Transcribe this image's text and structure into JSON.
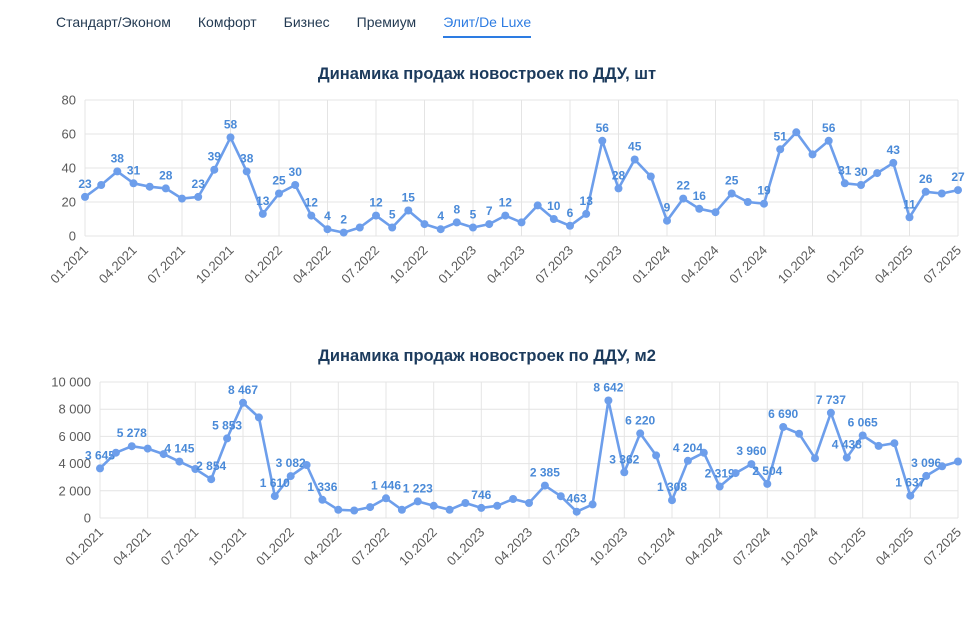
{
  "tabs": {
    "items": [
      {
        "label": "Стандарт/Эконом",
        "active": false
      },
      {
        "label": "Комфорт",
        "active": false
      },
      {
        "label": "Бизнес",
        "active": false
      },
      {
        "label": "Премиум",
        "active": false
      },
      {
        "label": "Элит/De Luxe",
        "active": true
      }
    ]
  },
  "colors": {
    "line": "#6d9eeb",
    "point_label": "#4a8ad8",
    "title": "#1b3a5c",
    "tab": "#243b53",
    "tab_active": "#2d7ce2",
    "grid": "#e4e4e4",
    "tick": "#5a5a5a"
  },
  "chart_data": [
    {
      "type": "line",
      "title": "Динамика продаж новостроек по ДДУ, шт",
      "xlabel": "",
      "ylabel": "",
      "legend": "none",
      "grid": true,
      "ylim": [
        0,
        80
      ],
      "yticks": [
        0,
        20,
        40,
        60,
        80
      ],
      "ytick_labels": [
        "0",
        "20",
        "40",
        "60",
        "80"
      ],
      "xtick_every": 3,
      "x": [
        "01.2021",
        "02.2021",
        "03.2021",
        "04.2021",
        "05.2021",
        "06.2021",
        "07.2021",
        "08.2021",
        "09.2021",
        "10.2021",
        "11.2021",
        "12.2021",
        "01.2022",
        "02.2022",
        "03.2022",
        "04.2022",
        "05.2022",
        "06.2022",
        "07.2022",
        "08.2022",
        "09.2022",
        "10.2022",
        "11.2022",
        "12.2022",
        "01.2023",
        "02.2023",
        "03.2023",
        "04.2023",
        "05.2023",
        "06.2023",
        "07.2023",
        "08.2023",
        "09.2023",
        "10.2023",
        "11.2023",
        "12.2023",
        "01.2024",
        "02.2024",
        "03.2024",
        "04.2024",
        "05.2024",
        "06.2024",
        "07.2024",
        "08.2024",
        "09.2024",
        "10.2024",
        "11.2024",
        "12.2024",
        "01.2025",
        "02.2025",
        "03.2025",
        "04.2025",
        "05.2025",
        "06.2025",
        "07.2025"
      ],
      "values": [
        23,
        30,
        38,
        31,
        29,
        28,
        22,
        23,
        39,
        58,
        38,
        13,
        25,
        30,
        12,
        4,
        2,
        5,
        12,
        5,
        15,
        7,
        4,
        8,
        5,
        7,
        12,
        8,
        18,
        10,
        6,
        13,
        56,
        28,
        45,
        35,
        9,
        22,
        16,
        14,
        25,
        20,
        19,
        51,
        61,
        48,
        56,
        31,
        30,
        37,
        43,
        11,
        26,
        25,
        27
      ],
      "point_labels": [
        "23",
        null,
        "38",
        "31",
        null,
        "28",
        null,
        "23",
        "39",
        "58",
        "38",
        "13",
        "25",
        "30",
        "12",
        "4",
        "2",
        null,
        "12",
        "5",
        "15",
        null,
        "4",
        "8",
        "5",
        "7",
        "12",
        null,
        null,
        "10",
        "6",
        "13",
        "56",
        "28",
        "45",
        null,
        "9",
        "22",
        "16",
        null,
        "25",
        null,
        "19",
        "51",
        null,
        null,
        "56",
        "31",
        "30",
        null,
        "43",
        "11",
        "26",
        null,
        "27"
      ]
    },
    {
      "type": "line",
      "title": "Динамика продаж новостроек по ДДУ, м2",
      "xlabel": "",
      "ylabel": "",
      "legend": "none",
      "grid": true,
      "ylim": [
        0,
        10000
      ],
      "yticks": [
        0,
        2000,
        4000,
        6000,
        8000,
        10000
      ],
      "ytick_labels": [
        "0",
        "2 000",
        "4 000",
        "6 000",
        "8 000",
        "10 000"
      ],
      "xtick_every": 3,
      "x": [
        "01.2021",
        "02.2021",
        "03.2021",
        "04.2021",
        "05.2021",
        "06.2021",
        "07.2021",
        "08.2021",
        "09.2021",
        "10.2021",
        "11.2021",
        "12.2021",
        "01.2022",
        "02.2022",
        "03.2022",
        "04.2022",
        "05.2022",
        "06.2022",
        "07.2022",
        "08.2022",
        "09.2022",
        "10.2022",
        "11.2022",
        "12.2022",
        "01.2023",
        "02.2023",
        "03.2023",
        "04.2023",
        "05.2023",
        "06.2023",
        "07.2023",
        "08.2023",
        "09.2023",
        "10.2023",
        "11.2023",
        "12.2023",
        "01.2024",
        "02.2024",
        "03.2024",
        "04.2024",
        "05.2024",
        "06.2024",
        "07.2024",
        "08.2024",
        "09.2024",
        "10.2024",
        "11.2024",
        "12.2024",
        "01.2025",
        "02.2025",
        "03.2025",
        "04.2025",
        "05.2025",
        "06.2025",
        "07.2025"
      ],
      "values": [
        3645,
        4800,
        5278,
        5100,
        4700,
        4145,
        3600,
        2854,
        5853,
        8467,
        7400,
        1610,
        3082,
        3900,
        1336,
        600,
        550,
        800,
        1446,
        600,
        1223,
        900,
        600,
        1100,
        746,
        900,
        1400,
        1100,
        2385,
        1600,
        463,
        1000,
        8642,
        3362,
        6220,
        4600,
        1308,
        4204,
        4800,
        2319,
        3300,
        3960,
        2504,
        6690,
        6200,
        4400,
        7737,
        4438,
        6065,
        5300,
        5500,
        1637,
        3096,
        3800,
        4156
      ],
      "point_labels": [
        "3 645",
        null,
        "5 278",
        null,
        null,
        "4 145",
        null,
        "2 854",
        "5 853",
        "8 467",
        null,
        "1 610",
        "3 082",
        null,
        "1 336",
        null,
        null,
        null,
        "1 446",
        null,
        "1 223",
        null,
        null,
        null,
        "746",
        null,
        null,
        null,
        "2 385",
        null,
        "463",
        null,
        "8 642",
        "3 362",
        "6 220",
        null,
        "1 308",
        "4 204",
        null,
        "2 319",
        null,
        "3 960",
        "2 504",
        "6 690",
        null,
        null,
        "7 737",
        "4 438",
        "6 065",
        null,
        null,
        "1 637",
        "3 096",
        null,
        null
      ]
    }
  ]
}
